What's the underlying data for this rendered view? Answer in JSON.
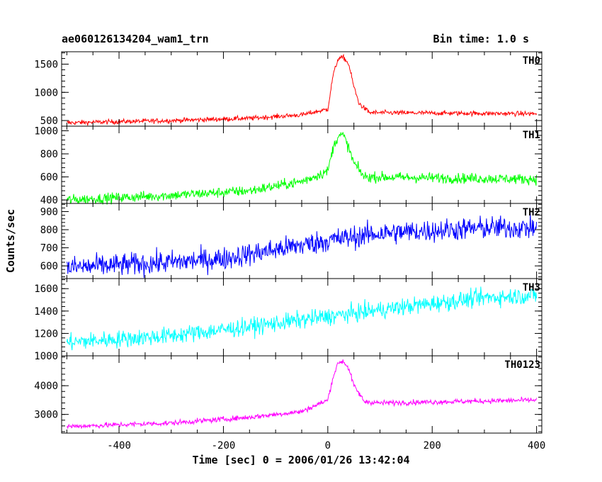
{
  "title_left": "ae060126134204_wam1_trn",
  "title_right": "Bin time: 1.0 s",
  "xlabel": "Time [sec] 0 = 2006/01/26 13:42:04",
  "ylabel": "Counts/sec",
  "chart_data": {
    "type": "line",
    "x_range": [
      -510,
      410
    ],
    "x_ticks": [
      -400,
      -200,
      0,
      200,
      400
    ],
    "bin_time_s": 1.0,
    "panels": [
      {
        "name": "TH0",
        "color": "#ff0000",
        "ylim": [
          400,
          1720
        ],
        "y_ticks": [
          500,
          1000,
          1500
        ],
        "noise": 30,
        "profile": [
          [
            -500,
            460
          ],
          [
            -300,
            500
          ],
          [
            -150,
            540
          ],
          [
            -50,
            600
          ],
          [
            0,
            700
          ],
          [
            10,
            1300
          ],
          [
            20,
            1600
          ],
          [
            30,
            1620
          ],
          [
            40,
            1500
          ],
          [
            50,
            1100
          ],
          [
            60,
            800
          ],
          [
            80,
            640
          ],
          [
            400,
            620
          ]
        ]
      },
      {
        "name": "TH1",
        "color": "#00ff00",
        "ylim": [
          370,
          1040
        ],
        "y_ticks": [
          400,
          600,
          800,
          1000
        ],
        "noise": 32,
        "profile": [
          [
            -500,
            400
          ],
          [
            -300,
            440
          ],
          [
            -150,
            480
          ],
          [
            -50,
            560
          ],
          [
            0,
            650
          ],
          [
            10,
            850
          ],
          [
            20,
            960
          ],
          [
            30,
            960
          ],
          [
            40,
            850
          ],
          [
            50,
            720
          ],
          [
            70,
            600
          ],
          [
            400,
            580
          ]
        ]
      },
      {
        "name": "TH2",
        "color": "#0000ff",
        "ylim": [
          530,
          945
        ],
        "y_ticks": [
          600,
          700,
          800,
          900
        ],
        "noise": 45,
        "profile": [
          [
            -500,
            590
          ],
          [
            -300,
            620
          ],
          [
            -200,
            640
          ],
          [
            -100,
            690
          ],
          [
            0,
            740
          ],
          [
            100,
            780
          ],
          [
            300,
            810
          ],
          [
            400,
            810
          ]
        ]
      },
      {
        "name": "TH3",
        "color": "#00ffff",
        "ylim": [
          1000,
          1690
        ],
        "y_ticks": [
          1000,
          1200,
          1400,
          1600
        ],
        "noise": 55,
        "profile": [
          [
            -500,
            1120
          ],
          [
            -300,
            1180
          ],
          [
            -150,
            1260
          ],
          [
            0,
            1350
          ],
          [
            150,
            1440
          ],
          [
            300,
            1520
          ],
          [
            400,
            1540
          ]
        ]
      },
      {
        "name": "TH0123",
        "color": "#ff00ff",
        "ylim": [
          2350,
          5040
        ],
        "y_ticks": [
          3000,
          4000
        ],
        "noise": 65,
        "profile": [
          [
            -500,
            2580
          ],
          [
            -300,
            2700
          ],
          [
            -150,
            2900
          ],
          [
            -50,
            3100
          ],
          [
            0,
            3500
          ],
          [
            10,
            4300
          ],
          [
            20,
            4800
          ],
          [
            30,
            4850
          ],
          [
            40,
            4600
          ],
          [
            50,
            4000
          ],
          [
            70,
            3450
          ],
          [
            100,
            3400
          ],
          [
            400,
            3500
          ]
        ]
      }
    ]
  }
}
